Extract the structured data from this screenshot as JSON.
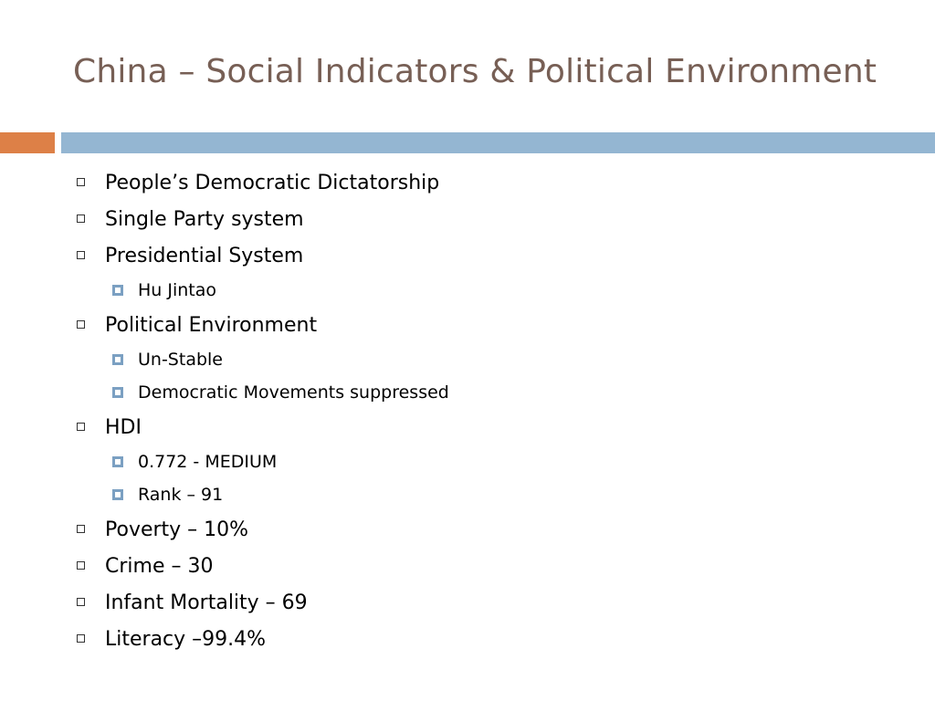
{
  "slide": {
    "title": "China – Social Indicators & Political Environment",
    "colors": {
      "title": "#775f55",
      "accent_bar": "#dd8047",
      "main_bar": "#94b6d2",
      "sub_bullet": "#7ba0c2"
    }
  },
  "bullets": [
    {
      "text": "People’s Democratic Dictatorship",
      "sub": []
    },
    {
      "text": "Single Party system",
      "sub": []
    },
    {
      "text": "Presidential System",
      "sub": [
        "Hu Jintao"
      ]
    },
    {
      "text": "Political Environment",
      "sub": [
        "Un-Stable",
        "Democratic Movements suppressed"
      ]
    },
    {
      "text": "HDI",
      "sub": [
        "0.772 - MEDIUM",
        "Rank – 91"
      ]
    },
    {
      "text": "Poverty – 10%",
      "sub": []
    },
    {
      "text": "Crime – 30",
      "sub": []
    },
    {
      "text": "Infant Mortality – 69",
      "sub": []
    },
    {
      "text": "Literacy –99.4%",
      "sub": []
    }
  ]
}
